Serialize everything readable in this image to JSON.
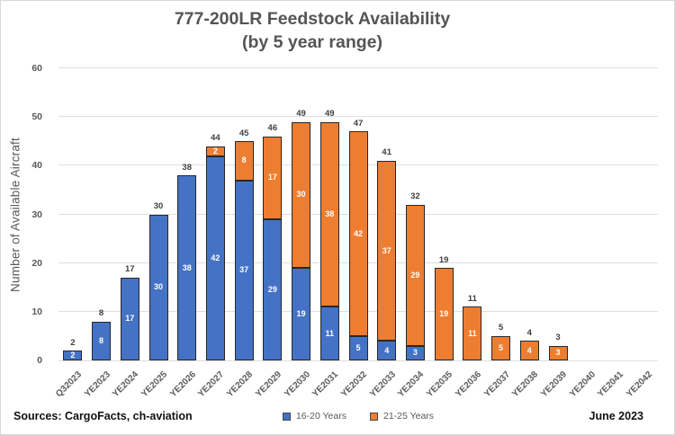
{
  "title": {
    "line1": "777-200LR Feedstock Availability",
    "line2": "(by 5 year range)"
  },
  "y_axis": {
    "title": "Number of Available Aircraft",
    "ticks": [
      0,
      10,
      20,
      30,
      40,
      50,
      60
    ]
  },
  "footer": {
    "sources": "Sources: CargoFacts, ch-aviation",
    "date": "June 2023"
  },
  "legend": {
    "items": [
      {
        "label": "16-20 Years",
        "color": "#4472C4"
      },
      {
        "label": "21-25 Years",
        "color": "#ED7D31"
      }
    ]
  },
  "colors": {
    "series_blue": "#4472C4",
    "series_orange": "#ED7D31",
    "bar_border": "#25282c",
    "gridline": "#dedede",
    "title_text": "#555555",
    "axis_text": "#595959",
    "data_label_dark": "#404040",
    "data_label_light": "#ffffff"
  },
  "chart_data": {
    "type": "bar",
    "stacked": true,
    "title": "777-200LR Feedstock Availability (by 5 year range)",
    "xlabel": "",
    "ylabel": "Number of Available Aircraft",
    "ylim": [
      0,
      60
    ],
    "yticks": [
      0,
      10,
      20,
      30,
      40,
      50,
      60
    ],
    "grid": true,
    "legend_position": "bottom",
    "categories": [
      "Q32023",
      "YE2023",
      "YE2024",
      "YE2025",
      "YE2026",
      "YE2027",
      "YE2028",
      "YE2029",
      "YE2030",
      "YE2031",
      "YE2032",
      "YE2033",
      "YE2034",
      "YE2035",
      "YE2036",
      "YE2037",
      "YE2038",
      "YE2039",
      "YE2040",
      "YE2041",
      "YE2042"
    ],
    "series": [
      {
        "name": "16-20 Years",
        "color": "#4472C4",
        "values": [
          2,
          8,
          17,
          30,
          38,
          42,
          37,
          29,
          19,
          11,
          5,
          4,
          3,
          0,
          0,
          0,
          0,
          0,
          0,
          0,
          0
        ]
      },
      {
        "name": "21-25 Years",
        "color": "#ED7D31",
        "values": [
          0,
          0,
          0,
          0,
          0,
          2,
          8,
          17,
          30,
          38,
          42,
          37,
          29,
          19,
          11,
          5,
          4,
          3,
          0,
          0,
          0
        ]
      }
    ],
    "totals": [
      2,
      8,
      17,
      30,
      38,
      44,
      45,
      46,
      49,
      49,
      47,
      41,
      32,
      19,
      11,
      5,
      4,
      3,
      0,
      0,
      0
    ]
  }
}
